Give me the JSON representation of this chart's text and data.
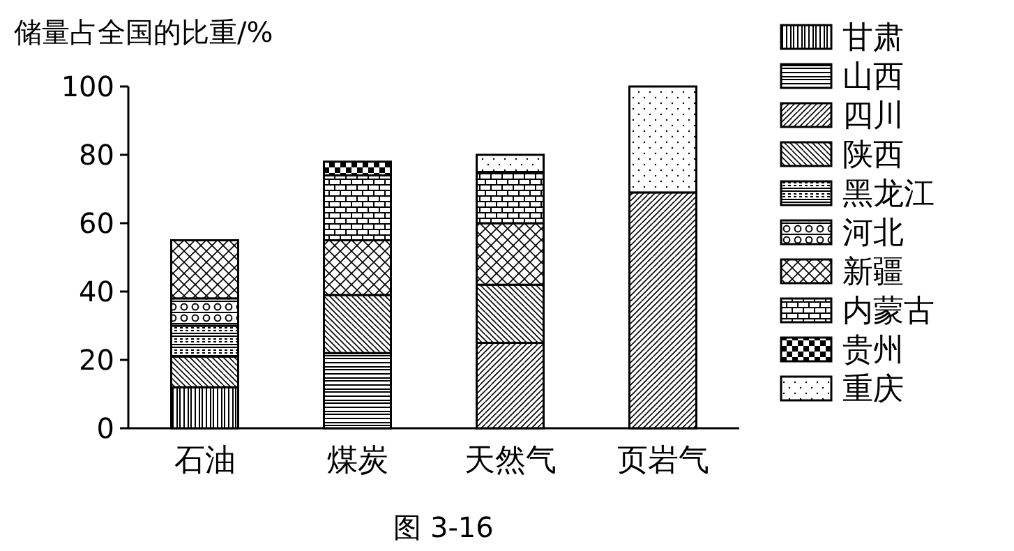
{
  "chart_data": {
    "type": "bar",
    "stacked": true,
    "ylabel": "储量占全国的比重/%",
    "categories": [
      "石油",
      "煤炭",
      "天然气",
      "页岩气"
    ],
    "series": [
      {
        "name": "甘肃",
        "color": "#000000",
        "values": [
          12,
          null,
          null,
          null
        ]
      },
      {
        "name": "山西",
        "color": "#000000",
        "values": [
          null,
          22,
          null,
          null
        ]
      },
      {
        "name": "四川",
        "color": "#000000",
        "values": [
          null,
          null,
          25,
          69
        ]
      },
      {
        "name": "陕西",
        "color": "#000000",
        "values": [
          9,
          17,
          17,
          null
        ]
      },
      {
        "name": "黑龙江",
        "color": "#000000",
        "values": [
          9,
          null,
          null,
          null
        ]
      },
      {
        "name": "河北",
        "color": "#000000",
        "values": [
          8,
          null,
          null,
          null
        ]
      },
      {
        "name": "新疆",
        "color": "#000000",
        "values": [
          17,
          16,
          18,
          null
        ]
      },
      {
        "name": "内蒙古",
        "color": "#000000",
        "values": [
          null,
          19,
          15,
          null
        ]
      },
      {
        "name": "贵州",
        "color": "#000000",
        "values": [
          null,
          4,
          null,
          null
        ]
      },
      {
        "name": "重庆",
        "color": "#000000",
        "values": [
          null,
          null,
          5,
          31
        ]
      }
    ],
    "ylim": [
      0,
      100
    ],
    "yticks": [
      0,
      20,
      40,
      60,
      80,
      100
    ],
    "legend": "right",
    "grid": false,
    "annotations": [
      "图 3-16"
    ]
  }
}
